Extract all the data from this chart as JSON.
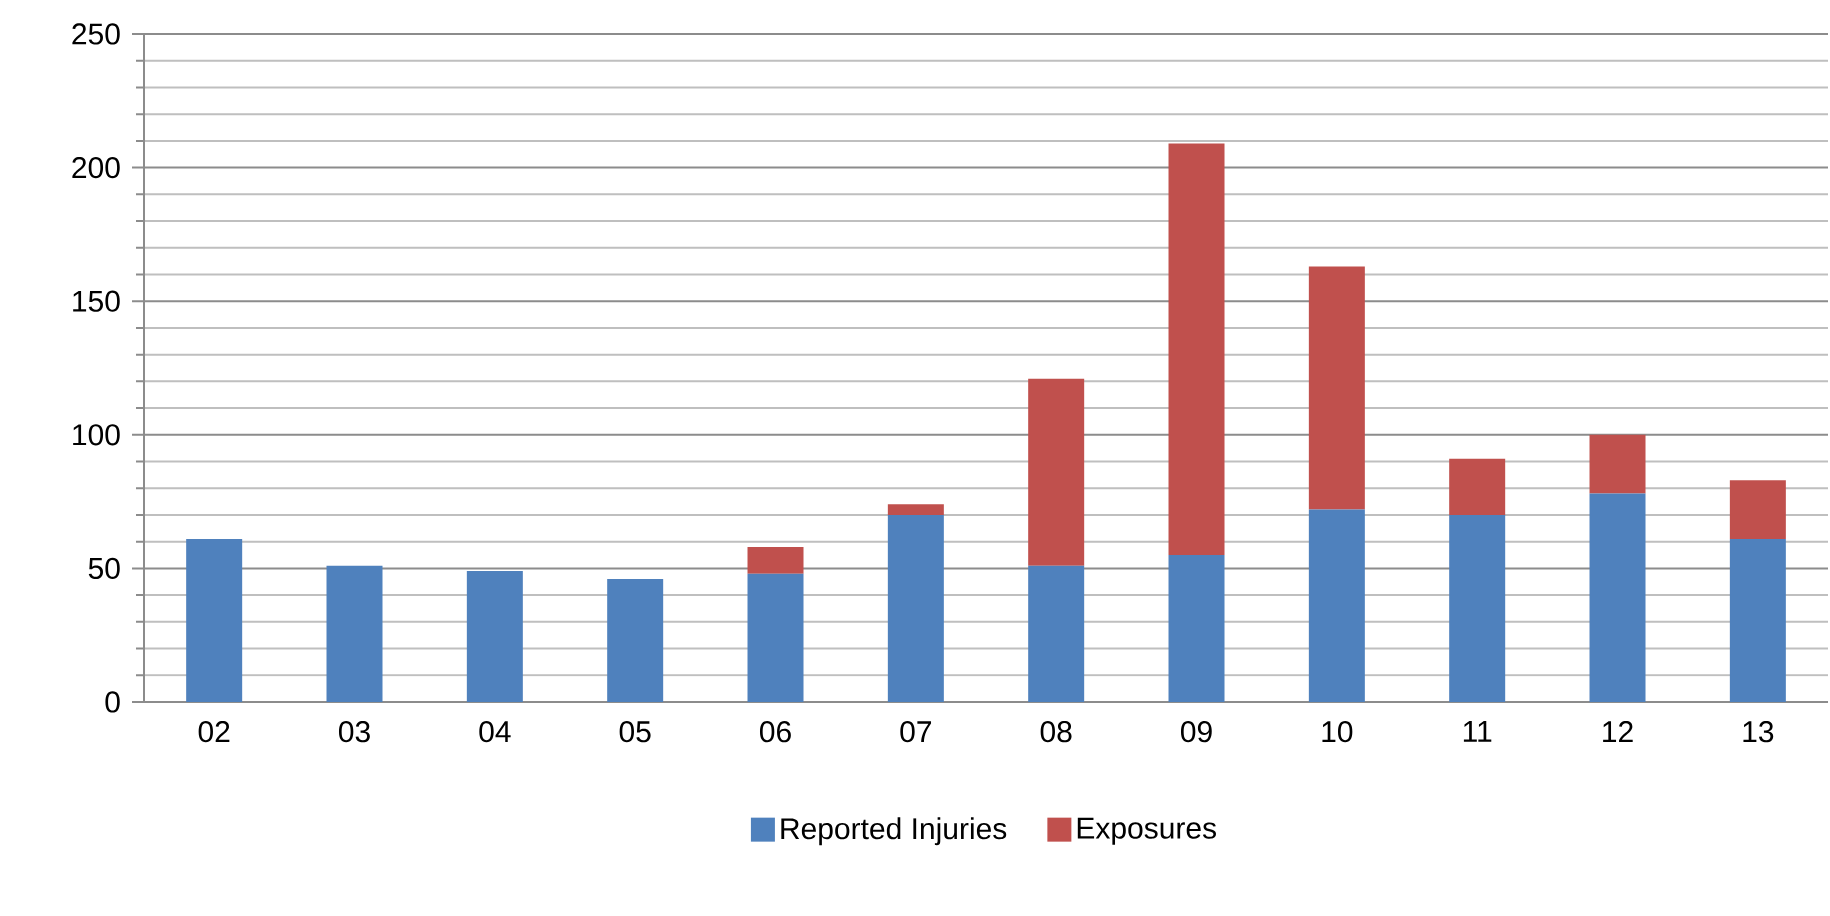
{
  "chart_data": {
    "type": "bar",
    "stacked": true,
    "categories": [
      "02",
      "03",
      "04",
      "05",
      "06",
      "07",
      "08",
      "09",
      "10",
      "11",
      "12",
      "13"
    ],
    "series": [
      {
        "name": "Reported Injuries",
        "color": "#4f81bd",
        "values": [
          61,
          51,
          49,
          46,
          48,
          70,
          51,
          55,
          72,
          70,
          78,
          61
        ]
      },
      {
        "name": "Exposures",
        "color": "#c0504d",
        "values": [
          0,
          0,
          0,
          0,
          10,
          4,
          70,
          154,
          91,
          21,
          22,
          22
        ]
      }
    ],
    "ylim": [
      0,
      250
    ],
    "yticks": [
      0,
      50,
      100,
      150,
      200,
      250
    ],
    "grid": "y",
    "legend": "bottom"
  }
}
